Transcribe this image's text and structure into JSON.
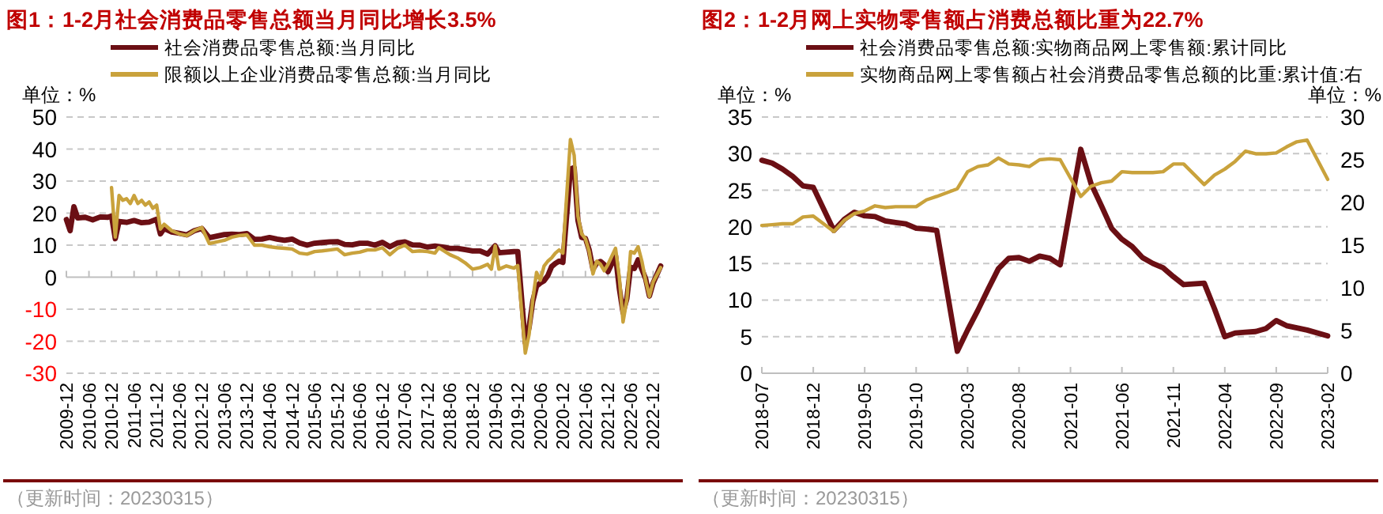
{
  "chart_data": [
    {
      "type": "line",
      "title": "图1：1-2月社会消费品零售总额当月同比增长3.5%",
      "ylabel": "单位：%",
      "legend": "top",
      "grid": "y",
      "ylim": [
        -30,
        50
      ],
      "yticks": [
        -30,
        -20,
        -10,
        0,
        10,
        20,
        30,
        40,
        50
      ],
      "xlim": [
        "2009-12",
        "2023-02"
      ],
      "xticks": [
        "2009-12",
        "2010-06",
        "2010-12",
        "2011-06",
        "2011-12",
        "2012-06",
        "2012-12",
        "2013-06",
        "2013-12",
        "2014-06",
        "2014-12",
        "2015-06",
        "2015-12",
        "2016-06",
        "2016-12",
        "2017-06",
        "2017-12",
        "2018-06",
        "2018-12",
        "2019-06",
        "2019-12",
        "2020-06",
        "2020-12",
        "2021-06",
        "2021-12",
        "2022-06",
        "2022-12"
      ],
      "annotations": [
        "（更新时间：20230315）"
      ],
      "series": [
        {
          "name": "社会消费品零售总额:当月同比",
          "color": "#6b0f14",
          "x": [
            "2009-12",
            "2010-01",
            "2010-02",
            "2010-03",
            "2010-05",
            "2010-07",
            "2010-09",
            "2010-11",
            "2010-12",
            "2011-01",
            "2011-02",
            "2011-04",
            "2011-06",
            "2011-08",
            "2011-10",
            "2011-12",
            "2012-01",
            "2012-02",
            "2012-04",
            "2012-06",
            "2012-08",
            "2012-10",
            "2012-12",
            "2013-02",
            "2013-04",
            "2013-06",
            "2013-08",
            "2013-10",
            "2013-12",
            "2014-02",
            "2014-04",
            "2014-06",
            "2014-08",
            "2014-10",
            "2014-12",
            "2015-02",
            "2015-04",
            "2015-06",
            "2015-08",
            "2015-10",
            "2015-12",
            "2016-02",
            "2016-04",
            "2016-06",
            "2016-08",
            "2016-10",
            "2016-12",
            "2017-02",
            "2017-04",
            "2017-06",
            "2017-08",
            "2017-10",
            "2017-12",
            "2018-02",
            "2018-04",
            "2018-06",
            "2018-08",
            "2018-10",
            "2018-12",
            "2019-02",
            "2019-04",
            "2019-06",
            "2019-07",
            "2019-09",
            "2019-11",
            "2019-12",
            "2020-02",
            "2020-03",
            "2020-04",
            "2020-05",
            "2020-06",
            "2020-07",
            "2020-08",
            "2020-09",
            "2020-10",
            "2020-11",
            "2020-12",
            "2021-02",
            "2021-03",
            "2021-04",
            "2021-05",
            "2021-06",
            "2021-07",
            "2021-08",
            "2021-09",
            "2021-10",
            "2021-11",
            "2021-12",
            "2022-02",
            "2022-03",
            "2022-04",
            "2022-05",
            "2022-06",
            "2022-07",
            "2022-08",
            "2022-09",
            "2022-10",
            "2022-11",
            "2022-12",
            "2023-02"
          ],
          "values": [
            18,
            14.5,
            22,
            18.5,
            18.7,
            17.9,
            18.8,
            18.7,
            19.1,
            12,
            17.4,
            17.1,
            17.7,
            17,
            17.2,
            18.1,
            13.5,
            15.2,
            14.1,
            13.7,
            13.2,
            14.5,
            15.2,
            12.3,
            12.8,
            13.3,
            13.4,
            13.3,
            13.6,
            11.8,
            11.9,
            12.4,
            11.9,
            11.5,
            11.9,
            10.7,
            10,
            10.6,
            10.8,
            11,
            11.1,
            10.2,
            10.1,
            10.6,
            10.6,
            10,
            10.9,
            9.5,
            10.7,
            11,
            10.1,
            10,
            9.4,
            9.7,
            9.4,
            9,
            9,
            8.6,
            8.2,
            8.2,
            7.2,
            9.8,
            7.6,
            7.8,
            8,
            8,
            -20.5,
            -15.8,
            -7.5,
            -2.8,
            -1.8,
            -1.1,
            0.5,
            3.3,
            4.3,
            5,
            4.6,
            33.8,
            34.2,
            17.7,
            12.4,
            12.1,
            8.5,
            2.5,
            4.4,
            4.9,
            3.9,
            1.7,
            6.7,
            -3.5,
            -11.1,
            -6.7,
            3.1,
            2.7,
            5.4,
            2.5,
            -0.5,
            -5.9,
            -1.8,
            3.5
          ]
        },
        {
          "name": "限额以上企业消费品零售总额:当月同比",
          "color": "#c9a23c",
          "x": [
            "2010-12",
            "2011-01",
            "2011-02",
            "2011-03",
            "2011-04",
            "2011-05",
            "2011-06",
            "2011-07",
            "2011-08",
            "2011-09",
            "2011-10",
            "2011-11",
            "2011-12",
            "2012-01",
            "2012-02",
            "2012-04",
            "2012-06",
            "2012-08",
            "2012-10",
            "2012-12",
            "2013-02",
            "2013-04",
            "2013-06",
            "2013-08",
            "2013-10",
            "2013-12",
            "2014-02",
            "2014-04",
            "2014-06",
            "2014-08",
            "2014-10",
            "2014-12",
            "2015-02",
            "2015-04",
            "2015-06",
            "2015-08",
            "2015-10",
            "2015-12",
            "2016-02",
            "2016-04",
            "2016-06",
            "2016-08",
            "2016-10",
            "2016-12",
            "2017-02",
            "2017-04",
            "2017-06",
            "2017-08",
            "2017-10",
            "2017-12",
            "2018-02",
            "2018-03",
            "2018-06",
            "2018-08",
            "2018-10",
            "2018-12",
            "2019-02",
            "2019-04",
            "2019-05",
            "2019-06",
            "2019-07",
            "2019-09",
            "2019-11",
            "2019-12",
            "2020-02",
            "2020-03",
            "2020-04",
            "2020-05",
            "2020-06",
            "2020-07",
            "2020-08",
            "2020-09",
            "2020-10",
            "2020-11",
            "2020-12",
            "2021-02",
            "2021-03",
            "2021-04",
            "2021-05",
            "2021-06",
            "2021-07",
            "2021-08",
            "2021-09",
            "2021-10",
            "2021-11",
            "2021-12",
            "2022-02",
            "2022-03",
            "2022-04",
            "2022-05",
            "2022-06",
            "2022-07",
            "2022-08",
            "2022-09",
            "2022-10",
            "2022-11",
            "2022-12",
            "2023-02"
          ],
          "values": [
            28,
            12.5,
            25.5,
            24,
            24.5,
            23,
            25.5,
            23,
            24,
            22.5,
            23.5,
            21.5,
            22.5,
            15,
            16.5,
            14.5,
            13.5,
            13,
            14.5,
            15.5,
            10.5,
            11,
            11.5,
            12.5,
            13,
            13.2,
            10,
            10,
            9.5,
            9.2,
            9,
            8.8,
            7.5,
            7.2,
            8,
            8.2,
            8.5,
            8.8,
            7,
            7.5,
            7.8,
            8.5,
            8.5,
            9.2,
            7,
            9,
            10,
            8,
            8.2,
            8,
            7.5,
            9.2,
            7,
            6,
            4.5,
            2.5,
            3,
            4,
            2.5,
            9.8,
            2.5,
            3.5,
            2.8,
            3.6,
            -23.7,
            -18,
            -7,
            1.5,
            -1,
            3.5,
            5,
            6,
            7.5,
            8.5,
            7.5,
            43,
            38,
            19,
            13.5,
            12,
            8,
            1,
            5,
            4,
            2,
            4,
            9,
            0,
            -14,
            -7,
            8,
            7.5,
            9.5,
            5,
            -1,
            -6,
            -1.5,
            3
          ]
        }
      ]
    },
    {
      "type": "line",
      "title": "图2：1-2月网上实物零售额占消费总额比重为22.7%",
      "ylabel": "单位：%",
      "y2label": "单位：%",
      "legend": "top",
      "grid": "y",
      "ylim": [
        0,
        35
      ],
      "yticks": [
        0,
        5,
        10,
        15,
        20,
        25,
        30,
        35
      ],
      "y2lim": [
        0,
        30
      ],
      "y2ticks": [
        0,
        5,
        10,
        15,
        20,
        25,
        30
      ],
      "xlim": [
        "2018-07",
        "2023-02"
      ],
      "xticks": [
        "2018-07",
        "2018-12",
        "2019-05",
        "2019-10",
        "2020-03",
        "2020-08",
        "2021-01",
        "2021-06",
        "2021-11",
        "2022-04",
        "2022-09",
        "2023-02"
      ],
      "annotations": [
        "（更新时间：20230315）"
      ],
      "x": [
        "2018-07",
        "2018-08",
        "2018-09",
        "2018-10",
        "2018-11",
        "2018-12",
        "2019-02",
        "2019-03",
        "2019-04",
        "2019-05",
        "2019-06",
        "2019-07",
        "2019-08",
        "2019-09",
        "2019-10",
        "2019-11",
        "2019-12",
        "2020-02",
        "2020-03",
        "2020-04",
        "2020-05",
        "2020-06",
        "2020-07",
        "2020-08",
        "2020-09",
        "2020-10",
        "2020-11",
        "2020-12",
        "2021-02",
        "2021-03",
        "2021-04",
        "2021-05",
        "2021-06",
        "2021-07",
        "2021-08",
        "2021-09",
        "2021-10",
        "2021-11",
        "2021-12",
        "2022-02",
        "2022-03",
        "2022-04",
        "2022-05",
        "2022-06",
        "2022-07",
        "2022-08",
        "2022-09",
        "2022-10",
        "2022-11",
        "2022-12",
        "2023-02"
      ],
      "series": [
        {
          "name": "社会消费品零售总额:实物商品网上零售额:累计同比",
          "color": "#6b0f14",
          "values": [
            29.1,
            28.7,
            27.9,
            26.9,
            25.6,
            25.4,
            19.5,
            21,
            22,
            21.5,
            21.4,
            20.8,
            20.6,
            20.4,
            19.8,
            19.7,
            19.5,
            3,
            5.9,
            8.6,
            11.5,
            14.3,
            15.7,
            15.8,
            15.3,
            16,
            15.7,
            14.8,
            30.6,
            25.9,
            22.9,
            19.8,
            18.3,
            17.3,
            15.8,
            15,
            14.4,
            13.2,
            12.1,
            12.3,
            8.8,
            5,
            5.5,
            5.6,
            5.7,
            6.1,
            7.2,
            6.5,
            6.2,
            5.9,
            5.1
          ]
        },
        {
          "name": "实物商品网上零售额占社会消费品零售总额的比重:累计值:右",
          "color": "#c9a23c",
          "axis": "y2",
          "values": [
            17.3,
            17.4,
            17.5,
            17.5,
            18.3,
            18.4,
            16.6,
            17.9,
            18.7,
            19,
            19.6,
            19.4,
            19.5,
            19.5,
            19.5,
            20.3,
            20.7,
            21.6,
            23.6,
            24.2,
            24.4,
            25.2,
            24.5,
            24.4,
            24.2,
            25,
            25.1,
            25,
            20.7,
            21.9,
            22.3,
            22.5,
            23.6,
            23.5,
            23.5,
            23.5,
            23.6,
            24.5,
            24.5,
            22.1,
            23.2,
            23.9,
            24.8,
            26,
            25.7,
            25.7,
            25.8,
            26.5,
            27.1,
            27.3,
            22.7
          ]
        }
      ]
    }
  ]
}
